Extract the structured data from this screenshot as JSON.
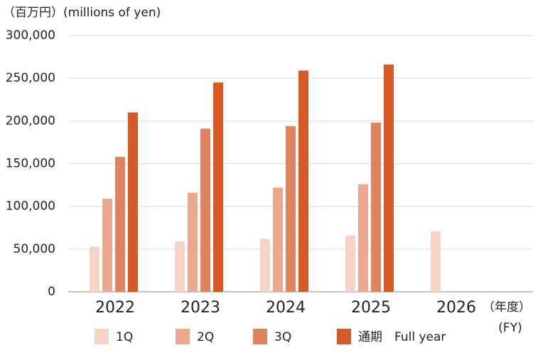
{
  "chart_data": {
    "type": "bar",
    "title": "（百万円）(millions of yen)",
    "x_unit_label": "（年度）",
    "x_unit_label_en": "(FY)",
    "categories": [
      "2022",
      "2023",
      "2024",
      "2025",
      "2026"
    ],
    "series": [
      {
        "name": "1Q",
        "color": "#f5d3c7",
        "values": [
          53000,
          59000,
          62000,
          66000,
          71000
        ]
      },
      {
        "name": "2Q",
        "color": "#eba98f",
        "values": [
          109000,
          116000,
          122000,
          126000,
          null
        ]
      },
      {
        "name": "3Q",
        "color": "#e0845f",
        "values": [
          158000,
          191000,
          194000,
          198000,
          null
        ]
      },
      {
        "name": "通期　Full year",
        "color": "#d65a27",
        "values": [
          210000,
          245000,
          259000,
          266000,
          null
        ]
      }
    ],
    "ylim": [
      0,
      300000
    ],
    "yticks": [
      0,
      {
        "value": 50000,
        "label": "50,000"
      },
      {
        "value": 100000,
        "label": "100,000"
      },
      {
        "value": 150000,
        "label": "150,000"
      },
      {
        "value": 200000,
        "label": "200,000"
      },
      {
        "value": 250000,
        "label": "250,000"
      },
      {
        "value": 300000,
        "label": "300,000"
      }
    ],
    "grid": true
  }
}
